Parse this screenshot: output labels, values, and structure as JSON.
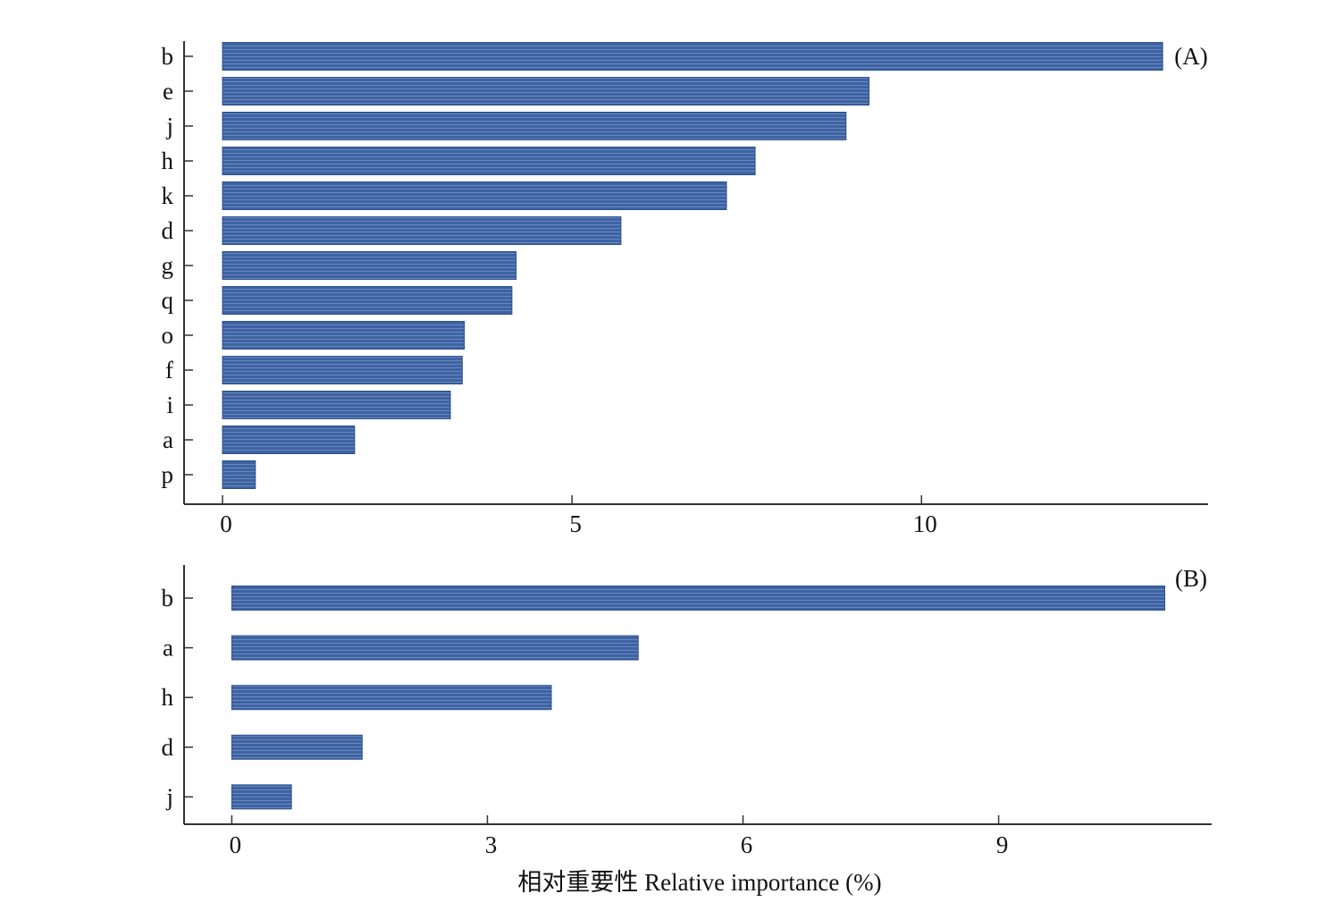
{
  "colors": {
    "bar": "#3d63a3",
    "bar_stripe": "#8fa6cc",
    "axis": "#333333"
  },
  "chart_data": [
    {
      "type": "bar",
      "orientation": "horizontal",
      "panel_label": "(A)",
      "categories": [
        "b",
        "e",
        "j",
        "h",
        "k",
        "d",
        "g",
        "q",
        "o",
        "f",
        "i",
        "a",
        "p"
      ],
      "values": [
        13.45,
        9.25,
        8.92,
        7.62,
        7.21,
        5.7,
        4.2,
        4.14,
        3.46,
        3.43,
        3.26,
        1.89,
        0.47
      ],
      "xticks": [
        0,
        5,
        10
      ],
      "xlim": [
        -0.55,
        14.1
      ],
      "grid": false
    },
    {
      "type": "bar",
      "orientation": "horizontal",
      "panel_label": "(B)",
      "categories": [
        "b",
        "a",
        "h",
        "d",
        "j"
      ],
      "values": [
        10.95,
        4.77,
        3.75,
        1.53,
        0.7
      ],
      "xticks": [
        0,
        3,
        6,
        9
      ],
      "xlim": [
        -0.56,
        11.5
      ],
      "xlabel": "相对重要性 Relative importance (%)",
      "grid": false
    }
  ]
}
